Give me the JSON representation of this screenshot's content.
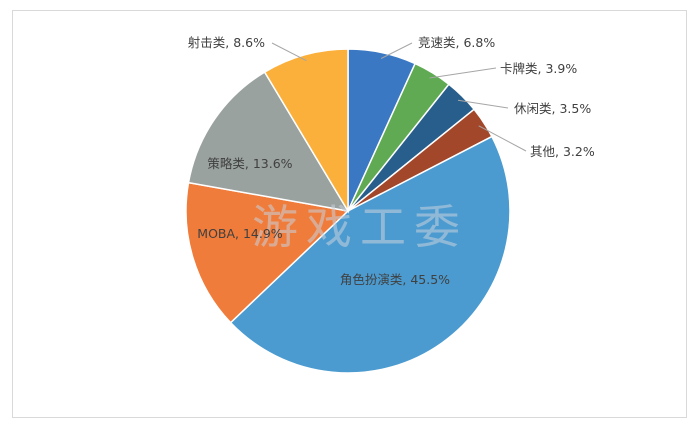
{
  "chart_data": {
    "type": "pie",
    "title": "",
    "series": [
      {
        "values": [
          6.8,
          3.9,
          3.5,
          3.2,
          45.5,
          14.9,
          13.6,
          8.6
        ]
      }
    ],
    "categories": [
      "竞速类",
      "卡牌类",
      "休闲类",
      "其他",
      "角色扮演类",
      "MOBA",
      "策略类",
      "射击类"
    ],
    "values": [
      6.8,
      3.9,
      3.5,
      3.2,
      45.5,
      14.9,
      13.6,
      8.6
    ],
    "labels": [
      "竞速类, 6.8%",
      "卡牌类, 3.9%",
      "休闲类, 3.5%",
      "其他, 3.2%",
      "角色扮演类, 45.5%",
      "MOBA, 14.9%",
      "策略类, 13.6%",
      "射击类, 8.6%"
    ],
    "colors": [
      "#3a78c3",
      "#5faa52",
      "#275e8c",
      "#a3472a",
      "#4b9bd0",
      "#f07c3b",
      "#9aa2a0",
      "#fbb03c"
    ],
    "legend": "none",
    "start_angle": "12 o'clock, clockwise"
  },
  "watermark": "游戏工委"
}
